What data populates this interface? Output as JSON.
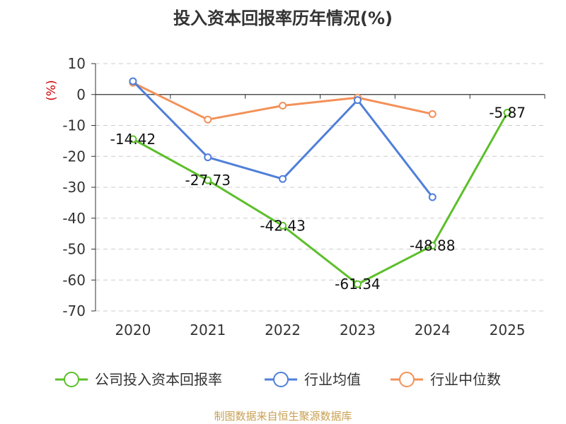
{
  "chart_data": {
    "type": "line",
    "title": "投入资本回报率历年情况(%)",
    "ylabel": "(%)",
    "categories": [
      "2020",
      "2021",
      "2022",
      "2023",
      "2024",
      "2025"
    ],
    "ylim": [
      -70,
      10
    ],
    "yticks": [
      10,
      0,
      -10,
      -20,
      -30,
      -40,
      -50,
      -60,
      -70
    ],
    "grid": true,
    "legend_position": "bottom",
    "series": [
      {
        "name": "公司投入资本回报率",
        "color": "#5cbf2a",
        "values": [
          -14.42,
          -27.73,
          -42.43,
          -61.34,
          -48.88,
          -5.87
        ],
        "labels": [
          "-14.42",
          "-27.73",
          "-42.43",
          "-61.34",
          "-48.88",
          "-5.87"
        ]
      },
      {
        "name": "行业均值",
        "color": "#4f7fd9",
        "values": [
          4.3,
          -20.3,
          -27.3,
          -1.8,
          -33.2,
          null
        ]
      },
      {
        "name": "行业中位数",
        "color": "#f39158",
        "values": [
          3.8,
          -8.1,
          -3.6,
          -1.0,
          -6.3,
          null
        ]
      }
    ]
  },
  "footer": "制图数据来自恒生聚源数据库"
}
